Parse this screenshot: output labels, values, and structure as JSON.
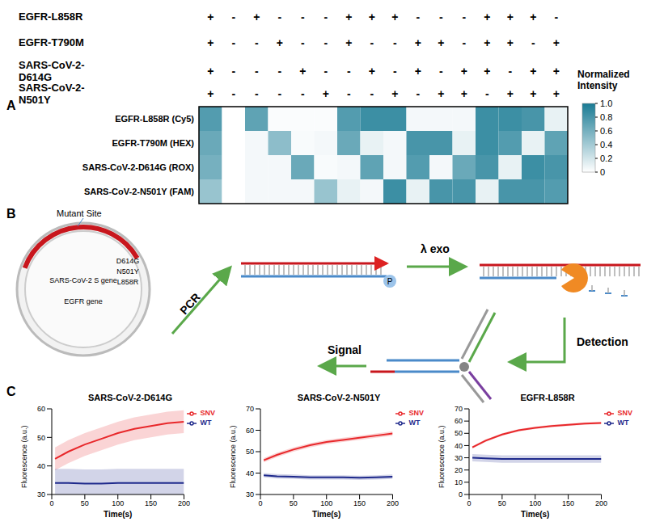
{
  "panels": [
    "A",
    "B",
    "C"
  ],
  "chart_data": [
    {
      "type": "heatmap",
      "header": [
        {
          "label": "EGFR-L858R",
          "marks": [
            "+",
            "-",
            "+",
            "-",
            "-",
            "-",
            "+",
            "+",
            "+",
            "-",
            "-",
            "-",
            "+",
            "+",
            "+",
            "-"
          ]
        },
        {
          "label": "EGFR-T790M",
          "marks": [
            "+",
            "-",
            "-",
            "+",
            "-",
            "-",
            "+",
            "-",
            "-",
            "+",
            "+",
            "-",
            "+",
            "+",
            "-",
            "+"
          ]
        },
        {
          "label": "SARS-CoV-2-D614G",
          "marks": [
            "+",
            "-",
            "-",
            "-",
            "+",
            "-",
            "-",
            "+",
            "-",
            "+",
            "-",
            "+",
            "+",
            "-",
            "+",
            "+"
          ]
        },
        {
          "label": "SARS-CoV-2-N501Y",
          "marks": [
            "+",
            "-",
            "-",
            "-",
            "-",
            "+",
            "-",
            "-",
            "+",
            "-",
            "+",
            "+",
            "-",
            "+",
            "+",
            "+"
          ]
        }
      ],
      "rows": [
        "EGFR-L858R (Cy5)",
        "EGFR-T790M (HEX)",
        "SARS-CoV-2-D614G (ROX)",
        "SARS-CoV-2-N501Y (FAM)"
      ],
      "cells": [
        [
          0.75,
          0,
          0.7,
          0.02,
          0.02,
          0.02,
          0.75,
          0.85,
          0.85,
          0.05,
          0.05,
          0.05,
          0.85,
          0.85,
          0.8,
          0.1
        ],
        [
          0.65,
          0,
          0.05,
          0.5,
          0.03,
          0.05,
          0.65,
          0.1,
          0.05,
          0.8,
          0.8,
          0.1,
          0.85,
          0.75,
          0.1,
          0.7
        ],
        [
          0.6,
          0,
          0.05,
          0.05,
          0.65,
          0.03,
          0.05,
          0.7,
          0.05,
          0.75,
          0.05,
          0.65,
          0.8,
          0.1,
          0.85,
          0.8
        ],
        [
          0.45,
          0,
          0.05,
          0.05,
          0.05,
          0.45,
          0.1,
          0.05,
          0.85,
          0.1,
          0.8,
          0.8,
          0.1,
          0.8,
          0.8,
          0.75
        ]
      ],
      "colorbar": {
        "title": "Normalized Intensity",
        "range": [
          0,
          1
        ],
        "ticks": [
          0,
          0.2,
          0.4,
          0.6,
          0.8,
          {
            "value": 1,
            "label": "1.0"
          }
        ],
        "colors": [
          "#ffffff",
          "#1a7b94"
        ]
      }
    },
    {
      "type": "line",
      "title": "SARS-CoV-2-D614G",
      "x_label": "Time(s)",
      "y_label": "Fluorescence (a.u.)",
      "x": [
        5,
        25,
        50,
        75,
        100,
        125,
        150,
        175,
        200
      ],
      "xlim": [
        0,
        200
      ],
      "xticks": [
        0,
        50,
        100,
        150,
        200
      ],
      "ylim": [
        30,
        60
      ],
      "yticks": [
        30,
        40,
        50,
        60
      ],
      "legend": "right",
      "series": [
        {
          "name": "SNV",
          "color": "#e8282b",
          "values": [
            42.5,
            45,
            47.5,
            49.5,
            51.5,
            53,
            54,
            55,
            55.5
          ],
          "error": [
            4,
            4,
            4,
            4,
            4,
            4,
            4,
            4,
            4
          ]
        },
        {
          "name": "WT",
          "color": "#1f2a8c",
          "values": [
            34,
            34,
            33.8,
            33.8,
            34,
            34,
            34,
            34,
            34
          ],
          "error": [
            5,
            5,
            5,
            5,
            5,
            5,
            5,
            5,
            5
          ]
        }
      ]
    },
    {
      "type": "line",
      "title": "SARS-CoV-2-N501Y",
      "x_label": "Time(s)",
      "y_label": "Fluorescence (a.u.)",
      "x": [
        5,
        25,
        50,
        75,
        100,
        125,
        150,
        175,
        200
      ],
      "xlim": [
        0,
        200
      ],
      "xticks": [
        0,
        50,
        100,
        150,
        200
      ],
      "ylim": [
        30,
        70
      ],
      "yticks": [
        30,
        40,
        50,
        60,
        70
      ],
      "legend": "right",
      "series": [
        {
          "name": "SNV",
          "color": "#e8282b",
          "values": [
            46,
            48.5,
            51,
            53,
            54.5,
            55.5,
            56.5,
            57.5,
            58.5
          ],
          "error": [
            1,
            1,
            1,
            1,
            1,
            1,
            1,
            1,
            1
          ]
        },
        {
          "name": "WT",
          "color": "#1f2a8c",
          "values": [
            39,
            38.5,
            38.3,
            38,
            38,
            38,
            37.8,
            38,
            38.3
          ],
          "error": [
            1,
            1,
            1,
            1,
            1,
            1,
            1,
            1,
            1
          ]
        }
      ]
    },
    {
      "type": "line",
      "title": "EGFR-L858R",
      "x_label": "Time(s)",
      "y_label": "Fluorescence (a.u.)",
      "x": [
        5,
        25,
        50,
        75,
        100,
        125,
        150,
        175,
        200
      ],
      "xlim": [
        0,
        200
      ],
      "xticks": [
        0,
        50,
        100,
        150,
        200
      ],
      "ylim": [
        0,
        70
      ],
      "yticks": [
        0,
        10,
        20,
        30,
        40,
        50,
        60,
        70
      ],
      "legend": "right",
      "series": [
        {
          "name": "SNV",
          "color": "#e8282b",
          "values": [
            38.5,
            44,
            49,
            52.5,
            54.5,
            56,
            57,
            58,
            58.5
          ],
          "error": [
            1,
            1,
            1,
            1,
            1,
            1,
            1,
            1,
            1
          ]
        },
        {
          "name": "WT",
          "color": "#1f2a8c",
          "values": [
            30,
            29.5,
            29,
            29,
            29,
            29,
            29,
            29,
            29
          ],
          "error": [
            3,
            3,
            3,
            3,
            3,
            3,
            3,
            3,
            3
          ]
        }
      ]
    }
  ],
  "diagram": {
    "mutant_label": "Mutant Site",
    "genes": [
      "SARS-CoV-2 S gene",
      "EGFR gene"
    ],
    "mutations": [
      "D614G",
      "N501Y",
      "L858R"
    ],
    "steps": [
      "PCR",
      "λ exo",
      "Detection",
      "Signal"
    ],
    "phosphate": "P"
  }
}
